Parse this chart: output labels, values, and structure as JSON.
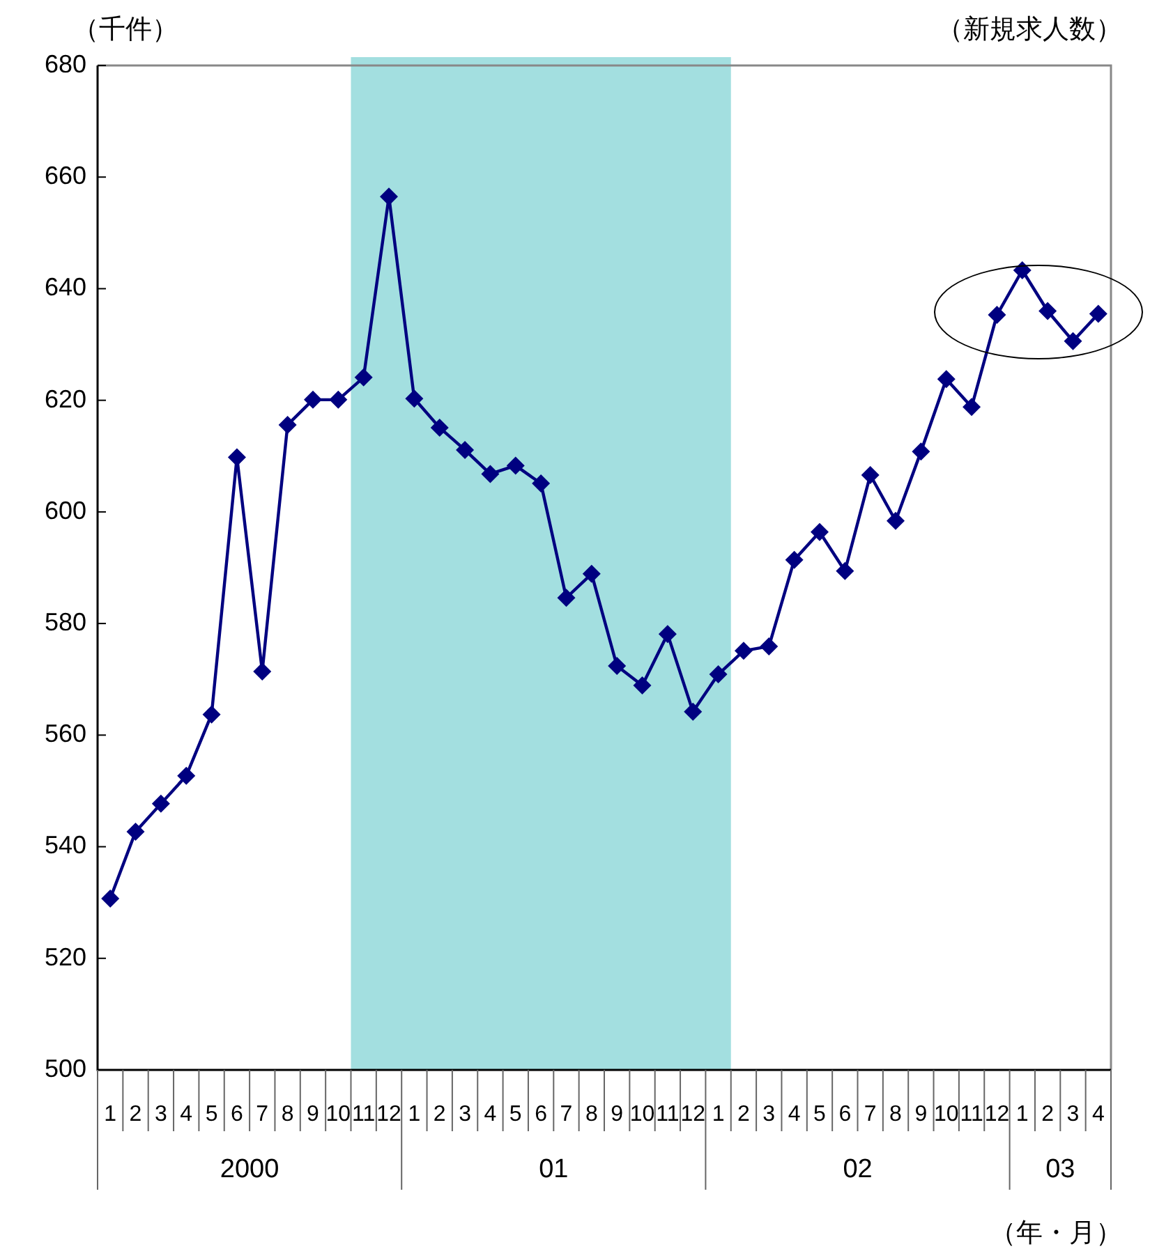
{
  "chart_data": {
    "type": "line",
    "title": "（新規求人数）",
    "ylabel": "（千件）",
    "annotations": [
      "2000",
      "01",
      "02",
      "03",
      "（年・月）"
    ],
    "xlim": [
      "1999-12-16",
      "2003-04-16"
    ],
    "xticks": [
      {
        "value": "2000-01",
        "label": "1"
      },
      {
        "value": "2000-02",
        "label": "2"
      },
      {
        "value": "2000-03",
        "label": "3"
      },
      {
        "value": "2000-04",
        "label": "4"
      },
      {
        "value": "2000-05",
        "label": "5"
      },
      {
        "value": "2000-06",
        "label": "6"
      },
      {
        "value": "2000-07",
        "label": "7"
      },
      {
        "value": "2000-08",
        "label": "8"
      },
      {
        "value": "2000-09",
        "label": "9"
      },
      {
        "value": "2000-10",
        "label": "10"
      },
      {
        "value": "2000-11",
        "label": "11"
      },
      {
        "value": "2000-12",
        "label": "12"
      },
      {
        "value": "2001-01",
        "label": "1"
      },
      {
        "value": "2001-02",
        "label": "2"
      },
      {
        "value": "2001-03",
        "label": "3"
      },
      {
        "value": "2001-04",
        "label": "4"
      },
      {
        "value": "2001-05",
        "label": "5"
      },
      {
        "value": "2001-06",
        "label": "6"
      },
      {
        "value": "2001-07",
        "label": "7"
      },
      {
        "value": "2001-08",
        "label": "8"
      },
      {
        "value": "2001-09",
        "label": "9"
      },
      {
        "value": "2001-10",
        "label": "10"
      },
      {
        "value": "2001-11",
        "label": "11"
      },
      {
        "value": "2001-12",
        "label": "12"
      },
      {
        "value": "2002-01",
        "label": "1"
      },
      {
        "value": "2002-02",
        "label": "2"
      },
      {
        "value": "2002-03",
        "label": "3"
      },
      {
        "value": "2002-04",
        "label": "4"
      },
      {
        "value": "2002-05",
        "label": "5"
      },
      {
        "value": "2002-06",
        "label": "6"
      },
      {
        "value": "2002-07",
        "label": "7"
      },
      {
        "value": "2002-08",
        "label": "8"
      },
      {
        "value": "2002-09",
        "label": "9"
      },
      {
        "value": "2002-10",
        "label": "10"
      },
      {
        "value": "2002-11",
        "label": "11"
      },
      {
        "value": "2002-12",
        "label": "12"
      },
      {
        "value": "2003-01",
        "label": "1"
      },
      {
        "value": "2003-02",
        "label": "2"
      },
      {
        "value": "2003-03",
        "label": "3"
      },
      {
        "value": "2003-04",
        "label": "4"
      }
    ],
    "x": [
      "2000-01",
      "2000-02",
      "2000-03",
      "2000-04",
      "2000-05",
      "2000-06",
      "2000-07",
      "2000-08",
      "2000-09",
      "2000-10",
      "2000-11",
      "2000-12",
      "2001-01",
      "2001-02",
      "2001-03",
      "2001-04",
      "2001-05",
      "2001-06",
      "2001-07",
      "2001-08",
      "2001-09",
      "2001-10",
      "2001-11",
      "2001-12",
      "2002-01",
      "2002-02",
      "2002-03",
      "2002-04",
      "2002-05",
      "2002-06",
      "2002-07",
      "2002-08",
      "2002-09",
      "2002-10",
      "2002-11",
      "2002-12",
      "2003-01",
      "2003-02",
      "2003-03",
      "2003-04"
    ],
    "series": [
      {
        "color": "#000080",
        "values": [
          530.7,
          542.7,
          547.7,
          552.7,
          563.7,
          609.8,
          571.4,
          615.6,
          620.1,
          620.1,
          624.1,
          656.5,
          620.3,
          615.1,
          611.1,
          606.8,
          608.3,
          605.1,
          584.6,
          588.9,
          572.4,
          568.9,
          578.1,
          564.2,
          570.9,
          575.1,
          575.9,
          591.4,
          596.4,
          589.4,
          606.6,
          598.4,
          610.8,
          623.8,
          618.8,
          635.3,
          643.3,
          636.0,
          630.6,
          635.5
        ]
      }
    ],
    "ylim": [
      500,
      680
    ],
    "yticks": [
      500,
      520,
      540,
      560,
      580,
      600,
      620,
      640,
      660,
      680
    ],
    "bands": [
      {
        "axis": "x",
        "from": "2000-10-16",
        "to": "2002-01-16",
        "color": "#a3dfe0"
      }
    ],
    "marker": "diamond",
    "line_style": "solid"
  }
}
